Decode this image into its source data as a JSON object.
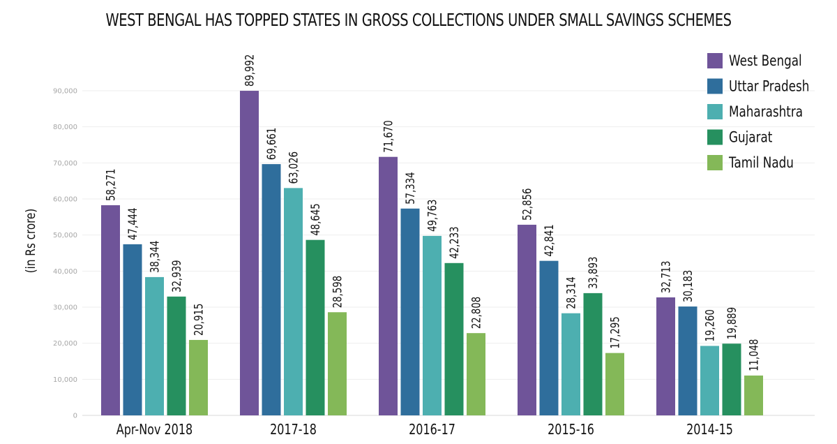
{
  "chart_data": {
    "type": "bar",
    "title": "WEST BENGAL HAS TOPPED STATES IN GROSS COLLECTIONS UNDER SMALL SAVINGS SCHEMES",
    "xlabel": "",
    "ylabel": "(in Rs crore)",
    "ylim": [
      0,
      90000
    ],
    "yticks": [
      "0",
      "10,000",
      "20,000",
      "30,000",
      "40,000",
      "50,000",
      "60,000",
      "70,000",
      "80,000",
      "90,000"
    ],
    "grid": true,
    "legend": "top-right",
    "categories": [
      "Apr-Nov 2018",
      "2017-18",
      "2016-17",
      "2015-16",
      "2014-15"
    ],
    "series": [
      {
        "name": "West Bengal",
        "color": "#6f5499",
        "values": [
          58271,
          89992,
          71670,
          52856,
          32713
        ],
        "labels": [
          "58,271",
          "89,992",
          "71,670",
          "52,856",
          "32,713"
        ]
      },
      {
        "name": "Uttar Pradesh",
        "color": "#2f6e9c",
        "values": [
          47444,
          69661,
          57334,
          42841,
          30183
        ],
        "labels": [
          "47,444",
          "69,661",
          "57,334",
          "42,841",
          "30,183"
        ]
      },
      {
        "name": "Maharashtra",
        "color": "#4dafb0",
        "values": [
          38344,
          63026,
          49763,
          28314,
          19260
        ],
        "labels": [
          "38,344",
          "63,026",
          "49,763",
          "28,314",
          "19,260"
        ]
      },
      {
        "name": "Gujarat",
        "color": "#26905f",
        "values": [
          32939,
          48645,
          42233,
          33893,
          19889
        ],
        "labels": [
          "32,939",
          "48,645",
          "42,233",
          "33,893",
          "19,889"
        ]
      },
      {
        "name": "Tamil Nadu",
        "color": "#84b858",
        "values": [
          20915,
          28598,
          22808,
          17295,
          11048
        ],
        "labels": [
          "20,915",
          "28,598",
          "22,808",
          "17,295",
          "11,048"
        ]
      }
    ]
  }
}
